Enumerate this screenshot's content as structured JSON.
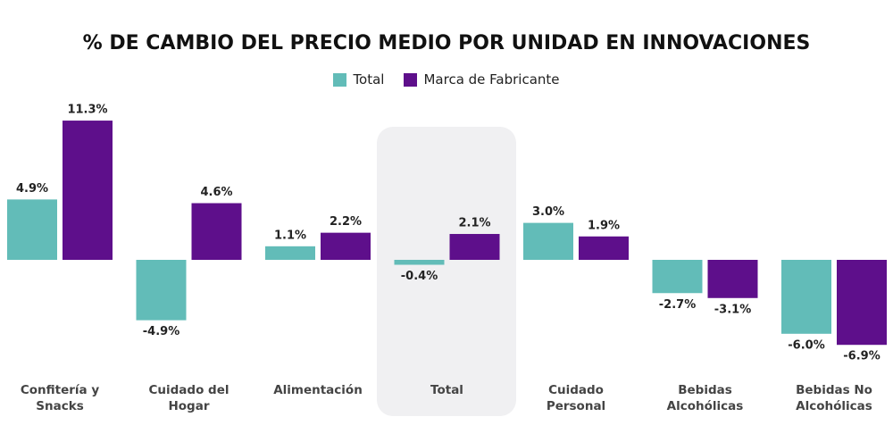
{
  "chart_data": {
    "type": "bar",
    "title": "% DE CAMBIO DEL PRECIO MEDIO POR UNIDAD EN INNOVACIONES",
    "categories": [
      "Confitería y Snacks",
      "Cuidado del Hogar",
      "Alimentación",
      "Total",
      "Cuidado Personal",
      "Bebidas Alcohólicas",
      "Bebidas No Alcohólicas"
    ],
    "series": [
      {
        "name": "Total",
        "color": "#62bcb8",
        "values": [
          4.9,
          -4.9,
          1.1,
          -0.4,
          3.0,
          -2.7,
          -6.0
        ],
        "value_labels": [
          "4.9%",
          "-4.9%",
          "1.1%",
          "-0.4%",
          "3.0%",
          "-2.7%",
          "-6.0%"
        ]
      },
      {
        "name": "Marca de Fabricante",
        "color": "#5e0f8b",
        "values": [
          11.3,
          4.6,
          2.2,
          2.1,
          1.9,
          -3.1,
          -6.9
        ],
        "value_labels": [
          "11.3%",
          "4.6%",
          "2.2%",
          "2.1%",
          "1.9%",
          "-3.1%",
          "-6.9%"
        ]
      }
    ]
  }
}
